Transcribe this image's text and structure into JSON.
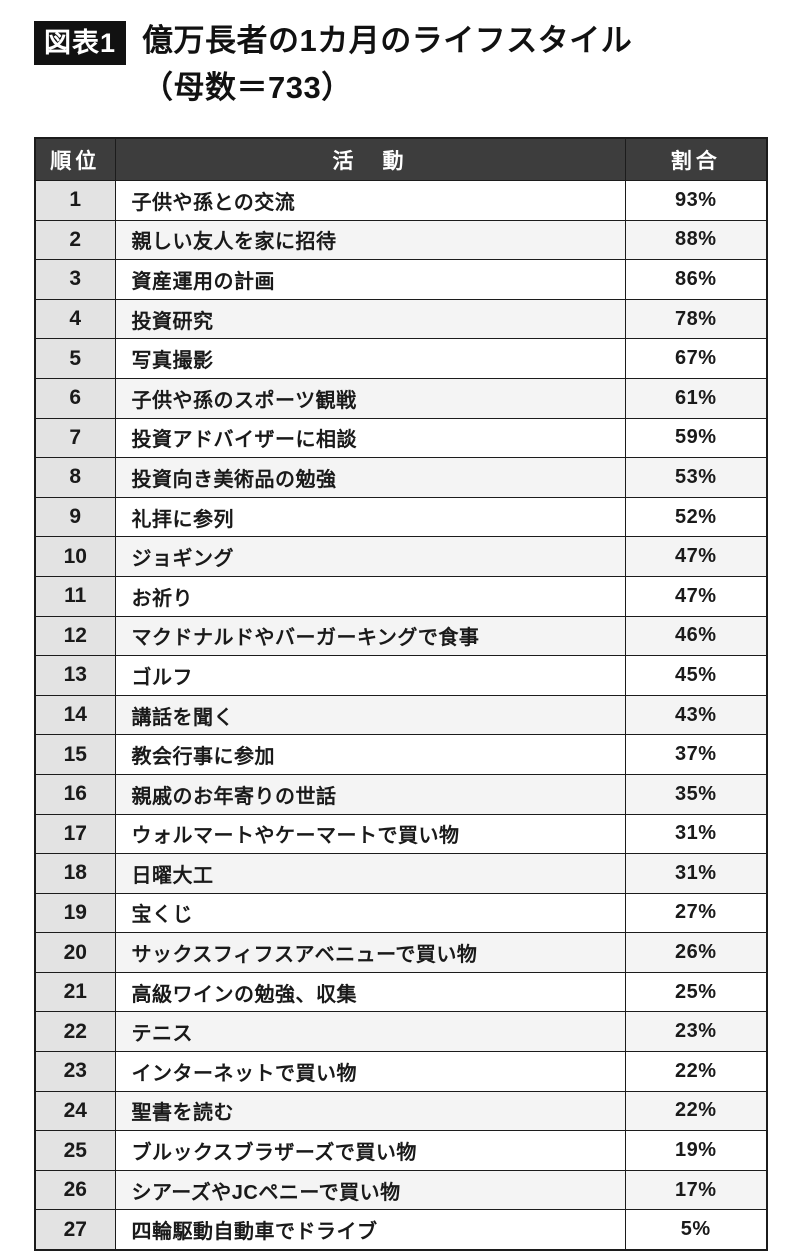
{
  "figure": {
    "badge": "図表1",
    "title_line1": "億万長者の1カ月のライフスタイル",
    "title_line2": "（母数＝733）"
  },
  "table": {
    "headers": {
      "rank": "順位",
      "activity": "活　動",
      "ratio": "割合"
    },
    "rows": [
      {
        "rank": "1",
        "activity": "子供や孫との交流",
        "ratio": "93%"
      },
      {
        "rank": "2",
        "activity": "親しい友人を家に招待",
        "ratio": "88%"
      },
      {
        "rank": "3",
        "activity": "資産運用の計画",
        "ratio": "86%"
      },
      {
        "rank": "4",
        "activity": "投資研究",
        "ratio": "78%"
      },
      {
        "rank": "5",
        "activity": "写真撮影",
        "ratio": "67%"
      },
      {
        "rank": "6",
        "activity": "子供や孫のスポーツ観戦",
        "ratio": "61%"
      },
      {
        "rank": "7",
        "activity": "投資アドバイザーに相談",
        "ratio": "59%"
      },
      {
        "rank": "8",
        "activity": "投資向き美術品の勉強",
        "ratio": "53%"
      },
      {
        "rank": "9",
        "activity": "礼拝に参列",
        "ratio": "52%"
      },
      {
        "rank": "10",
        "activity": "ジョギング",
        "ratio": "47%"
      },
      {
        "rank": "11",
        "activity": "お祈り",
        "ratio": "47%"
      },
      {
        "rank": "12",
        "activity": "マクドナルドやバーガーキングで食事",
        "ratio": "46%"
      },
      {
        "rank": "13",
        "activity": "ゴルフ",
        "ratio": "45%"
      },
      {
        "rank": "14",
        "activity": "講話を聞く",
        "ratio": "43%"
      },
      {
        "rank": "15",
        "activity": "教会行事に参加",
        "ratio": "37%"
      },
      {
        "rank": "16",
        "activity": "親戚のお年寄りの世話",
        "ratio": "35%"
      },
      {
        "rank": "17",
        "activity": "ウォルマートやケーマートで買い物",
        "ratio": "31%"
      },
      {
        "rank": "18",
        "activity": "日曜大工",
        "ratio": "31%"
      },
      {
        "rank": "19",
        "activity": "宝くじ",
        "ratio": "27%"
      },
      {
        "rank": "20",
        "activity": "サックスフィフスアベニューで買い物",
        "ratio": "26%"
      },
      {
        "rank": "21",
        "activity": "高級ワインの勉強、収集",
        "ratio": "25%"
      },
      {
        "rank": "22",
        "activity": "テニス",
        "ratio": "23%"
      },
      {
        "rank": "23",
        "activity": "インターネットで買い物",
        "ratio": "22%"
      },
      {
        "rank": "24",
        "activity": "聖書を読む",
        "ratio": "22%"
      },
      {
        "rank": "25",
        "activity": "ブルックスブラザーズで買い物",
        "ratio": "19%"
      },
      {
        "rank": "26",
        "activity": "シアーズやJCペニーで買い物",
        "ratio": "17%"
      },
      {
        "rank": "27",
        "activity": "四輪駆動自動車でドライブ",
        "ratio": "5%"
      }
    ]
  },
  "chart_data": {
    "type": "table",
    "title": "億万長者の1カ月のライフスタイル（母数＝733）",
    "columns": [
      "順位",
      "活動",
      "割合"
    ],
    "categories": [
      "子供や孫との交流",
      "親しい友人を家に招待",
      "資産運用の計画",
      "投資研究",
      "写真撮影",
      "子供や孫のスポーツ観戦",
      "投資アドバイザーに相談",
      "投資向き美術品の勉強",
      "礼拝に参列",
      "ジョギング",
      "お祈り",
      "マクドナルドやバーガーキングで食事",
      "ゴルフ",
      "講話を聞く",
      "教会行事に参加",
      "親戚のお年寄りの世話",
      "ウォルマートやケーマートで買い物",
      "日曜大工",
      "宝くじ",
      "サックスフィフスアベニューで買い物",
      "高級ワインの勉強、収集",
      "テニス",
      "インターネットで買い物",
      "聖書を読む",
      "ブルックスブラザーズで買い物",
      "シアーズやJCペニーで買い物",
      "四輪駆動自動車でドライブ"
    ],
    "values": [
      93,
      88,
      86,
      78,
      67,
      61,
      59,
      53,
      52,
      47,
      47,
      46,
      45,
      43,
      37,
      35,
      31,
      31,
      27,
      26,
      25,
      23,
      22,
      22,
      19,
      17,
      5
    ],
    "unit": "%",
    "sample_size": 733
  },
  "colors": {
    "header_bg": "#3d3d3d",
    "header_text": "#ffffff",
    "rank_column_bg": "#e3e3e3",
    "row_alt_bg": "#f4f4f4",
    "border": "#1c1c1c",
    "badge_bg": "#111111",
    "badge_text": "#ffffff"
  }
}
